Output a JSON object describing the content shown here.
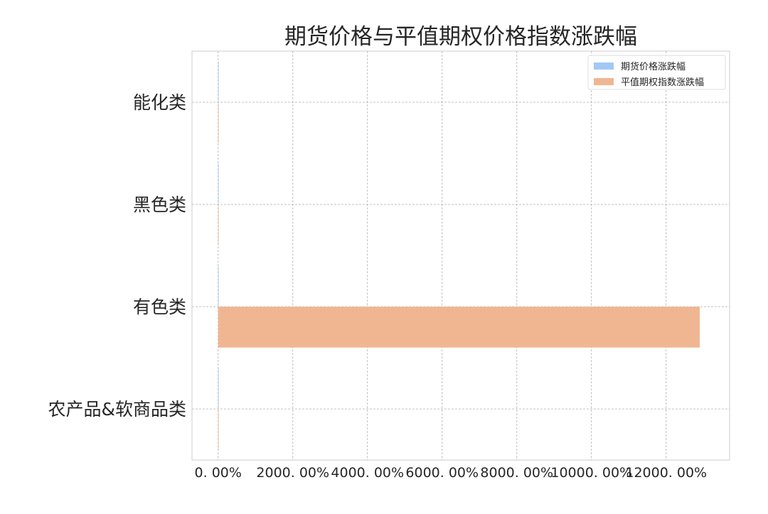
{
  "chart_data": {
    "type": "bar",
    "orientation": "horizontal",
    "title": "期货价格与平值期权价格指数涨跌幅",
    "xlabel": "",
    "ylabel": "",
    "categories": [
      "能化类",
      "黑色类",
      "有色类",
      "农产品&软商品类"
    ],
    "series": [
      {
        "name": "期货价格涨跌幅",
        "values": [
          -0.03,
          -0.03,
          0.05,
          -0.03
        ],
        "color": "#a1c9f4"
      },
      {
        "name": "平值期权指数涨跌幅",
        "values": [
          -0.2,
          -0.2,
          12900,
          -0.2
        ],
        "color": "#f0b692"
      }
    ],
    "xlim": [
      -700,
      13700
    ],
    "x_ticks": [
      0,
      2000,
      4000,
      6000,
      8000,
      10000,
      12000
    ],
    "x_tick_labels": [
      "0. 00%",
      "2000. 00%",
      "4000. 00%",
      "6000. 00%",
      "8000. 00%",
      "10000. 00%",
      "12000. 00%"
    ],
    "grid": true,
    "legend_position": "top-right"
  }
}
